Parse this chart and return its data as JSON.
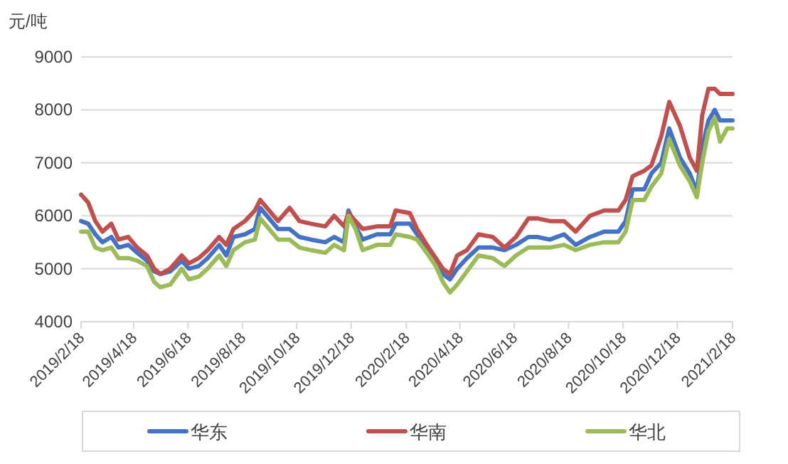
{
  "chart_data": {
    "type": "line",
    "ylabel": "元/吨",
    "x": [
      "2019-02-18",
      "2019-02-26",
      "2019-03-06",
      "2019-03-14",
      "2019-03-24",
      "2019-04-01",
      "2019-04-12",
      "2019-04-22",
      "2019-05-03",
      "2019-05-11",
      "2019-05-18",
      "2019-05-29",
      "2019-06-11",
      "2019-06-19",
      "2019-06-30",
      "2019-07-10",
      "2019-07-23",
      "2019-07-31",
      "2019-08-08",
      "2019-08-21",
      "2019-09-01",
      "2019-09-07",
      "2019-09-17",
      "2019-09-27",
      "2019-10-10",
      "2019-10-21",
      "2019-11-03",
      "2019-11-19",
      "2019-11-29",
      "2019-12-10",
      "2019-12-15",
      "2019-12-23",
      "2019-12-31",
      "2020-01-16",
      "2020-01-31",
      "2020-02-06",
      "2020-02-22",
      "2020-03-01",
      "2020-03-14",
      "2020-03-22",
      "2020-03-30",
      "2020-04-07",
      "2020-04-15",
      "2020-04-26",
      "2020-05-09",
      "2020-05-25",
      "2020-06-07",
      "2020-06-20",
      "2020-07-04",
      "2020-07-14",
      "2020-07-28",
      "2020-08-13",
      "2020-08-26",
      "2020-09-11",
      "2020-09-27",
      "2020-10-13",
      "2020-10-21",
      "2020-10-29",
      "2020-11-11",
      "2020-11-19",
      "2020-11-30",
      "2020-12-09",
      "2020-12-21",
      "2021-01-01",
      "2021-01-09",
      "2021-01-15",
      "2021-01-22",
      "2021-01-29",
      "2021-02-04",
      "2021-02-12",
      "2021-02-18"
    ],
    "series": [
      {
        "name": "华东",
        "color": "#4472c4",
        "values": [
          5900,
          5850,
          5650,
          5500,
          5600,
          5400,
          5450,
          5300,
          5150,
          4950,
          4900,
          4950,
          5150,
          5000,
          5050,
          5200,
          5450,
          5250,
          5600,
          5650,
          5750,
          6150,
          5950,
          5750,
          5750,
          5600,
          5550,
          5500,
          5600,
          5500,
          6100,
          5800,
          5550,
          5650,
          5650,
          5850,
          5850,
          5650,
          5350,
          5200,
          4900,
          4800,
          5000,
          5200,
          5400,
          5400,
          5350,
          5450,
          5600,
          5600,
          5550,
          5650,
          5450,
          5600,
          5700,
          5700,
          5900,
          6500,
          6500,
          6800,
          7000,
          7650,
          7100,
          6800,
          6450,
          7300,
          7800,
          8000,
          7800,
          7800,
          7800
        ]
      },
      {
        "name": "华南",
        "color": "#c0504d",
        "values": [
          6400,
          6250,
          5900,
          5700,
          5850,
          5550,
          5600,
          5400,
          5250,
          5000,
          4900,
          5000,
          5250,
          5100,
          5200,
          5350,
          5600,
          5450,
          5750,
          5900,
          6100,
          6300,
          6100,
          5900,
          6150,
          5900,
          5850,
          5800,
          6000,
          5800,
          6050,
          5900,
          5750,
          5800,
          5800,
          6100,
          6050,
          5750,
          5400,
          5200,
          5000,
          4900,
          5250,
          5350,
          5650,
          5600,
          5400,
          5600,
          5950,
          5950,
          5900,
          5900,
          5700,
          6000,
          6100,
          6100,
          6300,
          6750,
          6850,
          6950,
          7500,
          8150,
          7700,
          7100,
          6850,
          7900,
          8400,
          8400,
          8300,
          8300,
          8300
        ]
      },
      {
        "name": "华北",
        "color": "#9bbb59",
        "values": [
          5700,
          5700,
          5400,
          5350,
          5400,
          5200,
          5200,
          5150,
          5050,
          4750,
          4650,
          4700,
          5000,
          4800,
          4850,
          5000,
          5250,
          5050,
          5350,
          5500,
          5550,
          5950,
          5750,
          5550,
          5550,
          5400,
          5350,
          5300,
          5450,
          5350,
          6000,
          5750,
          5350,
          5450,
          5450,
          5650,
          5600,
          5550,
          5250,
          5050,
          4750,
          4550,
          4700,
          4950,
          5250,
          5200,
          5050,
          5250,
          5400,
          5400,
          5400,
          5450,
          5350,
          5450,
          5500,
          5500,
          5700,
          6300,
          6300,
          6550,
          6800,
          7450,
          6950,
          6650,
          6350,
          7000,
          7600,
          7850,
          7400,
          7650,
          7650
        ]
      }
    ],
    "xlim": [
      "2019-02-18",
      "2021-02-18"
    ],
    "xticks": [
      {
        "value": "2019-02-18",
        "label": "2019/2/18"
      },
      {
        "value": "2019-04-18",
        "label": "2019/4/18"
      },
      {
        "value": "2019-06-18",
        "label": "2019/6/18"
      },
      {
        "value": "2019-08-18",
        "label": "2019/8/18"
      },
      {
        "value": "2019-10-18",
        "label": "2019/10/18"
      },
      {
        "value": "2019-12-18",
        "label": "2019/12/18"
      },
      {
        "value": "2020-02-18",
        "label": "2020/2/18"
      },
      {
        "value": "2020-04-18",
        "label": "2020/4/18"
      },
      {
        "value": "2020-06-18",
        "label": "2020/6/18"
      },
      {
        "value": "2020-08-18",
        "label": "2020/8/18"
      },
      {
        "value": "2020-10-18",
        "label": "2020/10/18"
      },
      {
        "value": "2020-12-18",
        "label": "2020/12/18"
      },
      {
        "value": "2021-02-18",
        "label": "2021/2/18"
      }
    ],
    "ylim": [
      4000,
      9000
    ],
    "yticks": [
      4000,
      5000,
      6000,
      7000,
      8000,
      9000
    ],
    "grid": "y",
    "legend": "bottom",
    "line_style": "solid"
  }
}
